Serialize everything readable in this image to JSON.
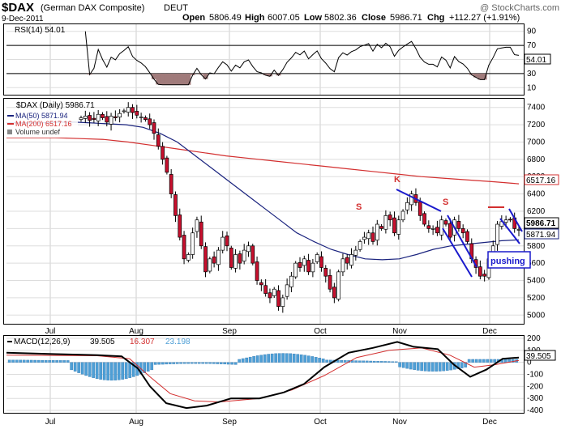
{
  "header": {
    "symbol": "$DAX",
    "name": "(German DAX Composite)",
    "exchange": "DEUT",
    "watermark": "@ StockCharts.com",
    "date": "9-Dec-2011",
    "open_label": "Open",
    "open": "5806.49",
    "high_label": "High",
    "high": "6007.05",
    "low_label": "Low",
    "low": "5802.36",
    "close_label": "Close",
    "close": "5986.71",
    "chg_label": "Chg",
    "chg": "+112.27 (+1.91%)"
  },
  "rsi_panel": {
    "title": "RSI(14) 54.01",
    "current": "54.01",
    "ticks": [
      "90",
      "70",
      "50",
      "30",
      "10"
    ]
  },
  "price_panel": {
    "title": "$DAX (Daily) 5986.71",
    "legend": [
      {
        "label": "MA(50) 5871.94",
        "color": "#1a237e"
      },
      {
        "label": "MA(200) 6517.16",
        "color": "#d32f2f"
      },
      {
        "label": "Volume undef",
        "color": "#555555"
      }
    ],
    "y_ticks": [
      "7400",
      "7200",
      "7000",
      "6800",
      "6600",
      "6400",
      "6200",
      "6000",
      "5800",
      "5600",
      "5400",
      "5200",
      "5000"
    ],
    "ma200_tag": "6517.16",
    "close_tag": "5986.71",
    "ma50_tag": "5871.94",
    "annotations": {
      "left_s": "S",
      "head_k": "K",
      "right_s": "S",
      "note": "pushing"
    }
  },
  "macd_panel": {
    "title": "MACD(12,26,9)",
    "macd": "39.505",
    "signal": "16.307",
    "hist": "23.198",
    "current": "39.505",
    "ticks": [
      "200",
      "100",
      "0",
      "-100",
      "-200",
      "-300",
      "-400"
    ]
  },
  "x_axis": {
    "labels": [
      "Jul",
      "Aug",
      "Sep",
      "Oct",
      "Nov",
      "Dec"
    ]
  },
  "colors": {
    "up": "#ffffff",
    "down": "#c8102e",
    "ma50": "#1a237e",
    "ma200": "#d32f2f",
    "hist": "#4e9fd6",
    "trend": "#1a1acc"
  },
  "chart_data": {
    "type": "candlestick",
    "title": "$DAX (Daily) 5986.71",
    "ylim": [
      4900,
      7500
    ],
    "month_labels": [
      "Jul",
      "Aug",
      "Sep",
      "Oct",
      "Nov",
      "Dec"
    ],
    "ohlc_close_approx": [
      7280,
      7300,
      7250,
      7260,
      7320,
      7280,
      7230,
      7300,
      7280,
      7330,
      7360,
      7400,
      7340,
      7310,
      7290,
      7260,
      7200,
      7100,
      6950,
      6800,
      6650,
      6400,
      6150,
      5900,
      5650,
      5700,
      5950,
      6100,
      5800,
      5500,
      5650,
      5600,
      5750,
      5900,
      5800,
      5550,
      5700,
      5600,
      5750,
      5800,
      5600,
      5400,
      5350,
      5250,
      5200,
      5300,
      5100,
      5200,
      5350,
      5450,
      5600,
      5550,
      5650,
      5500,
      5600,
      5700,
      5550,
      5450,
      5300,
      5200,
      5500,
      5650,
      5600,
      5700,
      5750,
      5850,
      5900,
      5950,
      5850,
      6050,
      6000,
      6150,
      6100,
      5950,
      6100,
      6200,
      6300,
      6400,
      6300,
      6150,
      6050,
      6000,
      6000,
      5950,
      6100,
      6050,
      5900,
      6100,
      6000,
      5950,
      5850,
      5650,
      5550,
      5450,
      5450,
      5650,
      5800,
      6050,
      6080,
      6100,
      6100,
      6000,
      5990
    ],
    "ma50": [
      7220,
      7220,
      7220,
      7230,
      7230,
      7220,
      7210,
      7200,
      7170,
      7100,
      7000,
      6850,
      6700,
      6550,
      6400,
      6250,
      6100,
      5950,
      5850,
      5760,
      5700,
      5650,
      5640,
      5650,
      5700,
      5760,
      5800,
      5820,
      5840,
      5860,
      5870
    ],
    "ma200": [
      7050,
      7050,
      7050,
      7040,
      7030,
      7000,
      6960,
      6920,
      6880,
      6840,
      6810,
      6780,
      6750,
      6720,
      6690,
      6660,
      6630,
      6600,
      6580,
      6560,
      6540,
      6517
    ],
    "rsi": {
      "current": 54.01,
      "levels": [
        70,
        30
      ]
    },
    "macd": {
      "macd": 39.505,
      "signal": 16.307,
      "histogram": 23.198,
      "ylim": [
        -420,
        220
      ]
    }
  }
}
